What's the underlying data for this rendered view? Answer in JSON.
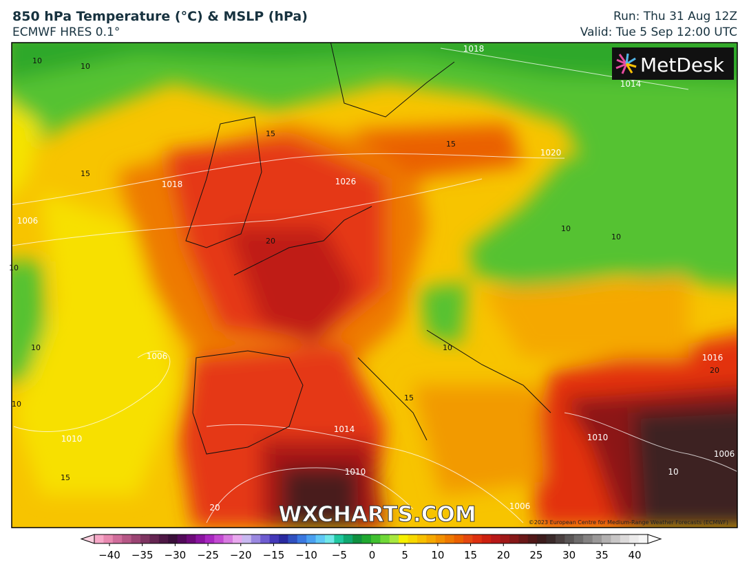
{
  "header": {
    "title": "850 hPa Temperature (°C) & MSLP (hPa)",
    "subtitle": "ECMWF HRES 0.1°",
    "run": "Run: Thu 31 Aug 12Z",
    "valid": "Valid: Tue 5 Sep 12:00 UTC"
  },
  "map": {
    "logo": "MetDesk",
    "watermark": "WXCHARTS.COM",
    "copyright": "©2023 European Centre for Medium-Range Weather Forecasts (ECMWF)",
    "contour_labels": [
      "10",
      "10",
      "1018",
      "1014",
      "15",
      "15",
      "1020",
      "15",
      "1018",
      "1026",
      "1006",
      "20",
      "10",
      "10",
      "10",
      "10",
      "1006",
      "10",
      "1016",
      "20",
      "15",
      "10",
      "1014",
      "1010",
      "1010",
      "1006",
      "1010",
      "15",
      "10",
      "20",
      "1006"
    ]
  },
  "colorbar": {
    "ticks": [
      "−40",
      "−35",
      "−30",
      "−25",
      "−20",
      "−15",
      "−10",
      "−5",
      "0",
      "5",
      "10",
      "15",
      "20",
      "25",
      "30",
      "35",
      "40"
    ]
  }
}
